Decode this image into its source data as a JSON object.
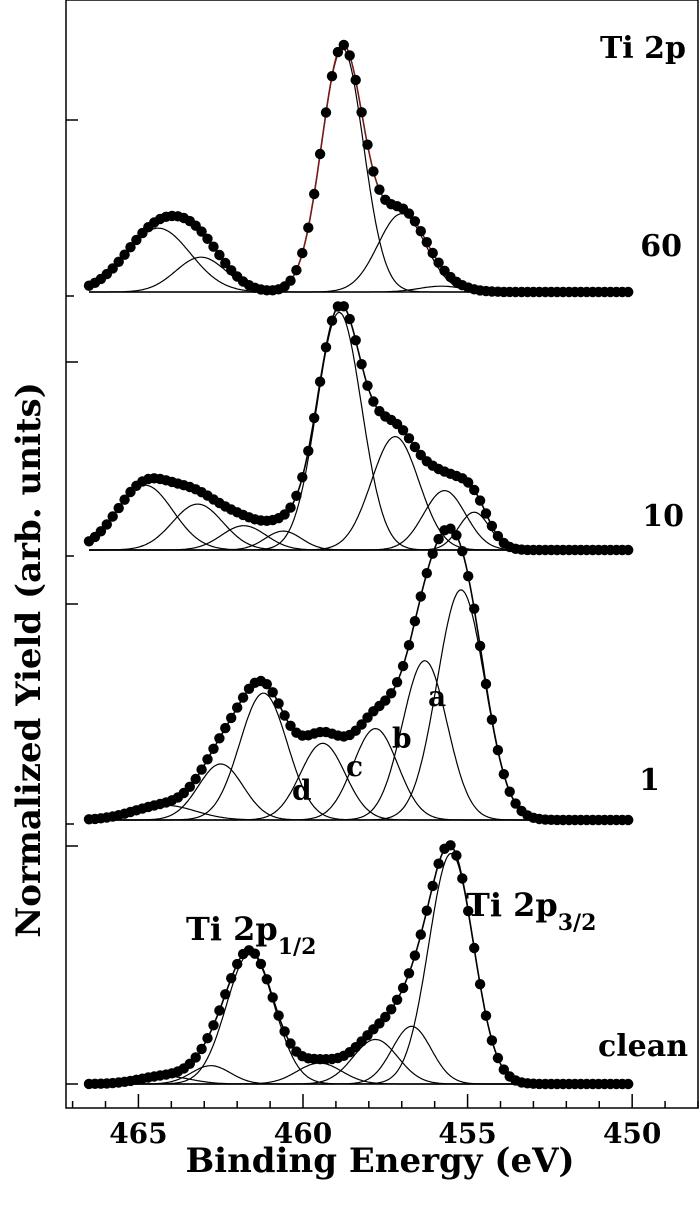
{
  "chart_data": {
    "type": "line",
    "title": "",
    "xlabel": "Binding Energy (eV)",
    "ylabel": "Normalized Yield (arb. units)",
    "xlim": [
      467.2,
      448.0
    ],
    "x_reversed": true,
    "x_ticks": [
      465,
      460,
      455,
      450
    ],
    "x_tick_labels": [
      "465",
      "460",
      "455",
      "450"
    ],
    "y_ticks_per_panel": 1,
    "grid": false,
    "legend": "none",
    "panel_label": "Ti 2p",
    "annotations": {
      "ti_2p12": "Ti 2p",
      "ti_2p12_sub": "1/2",
      "ti_2p32": "Ti 2p",
      "ti_2p32_sub": "3/2",
      "component_a": "a",
      "component_b": "b",
      "component_c": "c",
      "component_d": "d"
    },
    "panels": [
      {
        "label": "60",
        "ylim": [
          0,
          1.0
        ],
        "envelope_color": "#7a1a1a",
        "components": [
          {
            "center": 458.8,
            "height": 0.84,
            "fwhm": 1.5,
            "color": "#7a1a1a"
          },
          {
            "center": 457.0,
            "height": 0.27,
            "fwhm": 1.7
          },
          {
            "center": 464.4,
            "height": 0.22,
            "fwhm": 2.3
          },
          {
            "center": 463.1,
            "height": 0.12,
            "fwhm": 1.8
          },
          {
            "center": 455.8,
            "height": 0.02,
            "fwhm": 1.6
          }
        ]
      },
      {
        "label": "10",
        "ylim": [
          0,
          1.0
        ],
        "envelope_color": "#000000",
        "components": [
          {
            "center": 458.9,
            "height": 0.88,
            "fwhm": 1.6
          },
          {
            "center": 457.2,
            "height": 0.42,
            "fwhm": 1.7
          },
          {
            "center": 455.7,
            "height": 0.22,
            "fwhm": 1.5
          },
          {
            "center": 454.8,
            "height": 0.14,
            "fwhm": 1.1
          },
          {
            "center": 464.8,
            "height": 0.24,
            "fwhm": 2.0
          },
          {
            "center": 463.2,
            "height": 0.17,
            "fwhm": 1.8
          },
          {
            "center": 461.8,
            "height": 0.09,
            "fwhm": 1.6
          },
          {
            "center": 460.6,
            "height": 0.07,
            "fwhm": 1.3
          }
        ]
      },
      {
        "label": "1",
        "ylim": [
          0,
          1.0
        ],
        "envelope_color": "#000000",
        "components": [
          {
            "center": 455.2,
            "height": 0.78,
            "fwhm": 1.7
          },
          {
            "center": 456.3,
            "height": 0.54,
            "fwhm": 1.6
          },
          {
            "center": 457.8,
            "height": 0.31,
            "fwhm": 1.6
          },
          {
            "center": 459.4,
            "height": 0.26,
            "fwhm": 1.6
          },
          {
            "center": 461.2,
            "height": 0.43,
            "fwhm": 1.7
          },
          {
            "center": 462.5,
            "height": 0.19,
            "fwhm": 1.6
          },
          {
            "center": 464.2,
            "height": 0.05,
            "fwhm": 2.2
          }
        ]
      },
      {
        "label": "clean",
        "ylim": [
          0,
          1.0
        ],
        "envelope_color": "#000000",
        "components": [
          {
            "center": 455.5,
            "height": 0.88,
            "fwhm": 1.6
          },
          {
            "center": 456.7,
            "height": 0.22,
            "fwhm": 1.4
          },
          {
            "center": 457.8,
            "height": 0.17,
            "fwhm": 1.6
          },
          {
            "center": 459.5,
            "height": 0.08,
            "fwhm": 1.6
          },
          {
            "center": 461.6,
            "height": 0.5,
            "fwhm": 1.7
          },
          {
            "center": 462.8,
            "height": 0.07,
            "fwhm": 1.4
          },
          {
            "center": 464.2,
            "height": 0.03,
            "fwhm": 1.8
          }
        ]
      }
    ]
  }
}
